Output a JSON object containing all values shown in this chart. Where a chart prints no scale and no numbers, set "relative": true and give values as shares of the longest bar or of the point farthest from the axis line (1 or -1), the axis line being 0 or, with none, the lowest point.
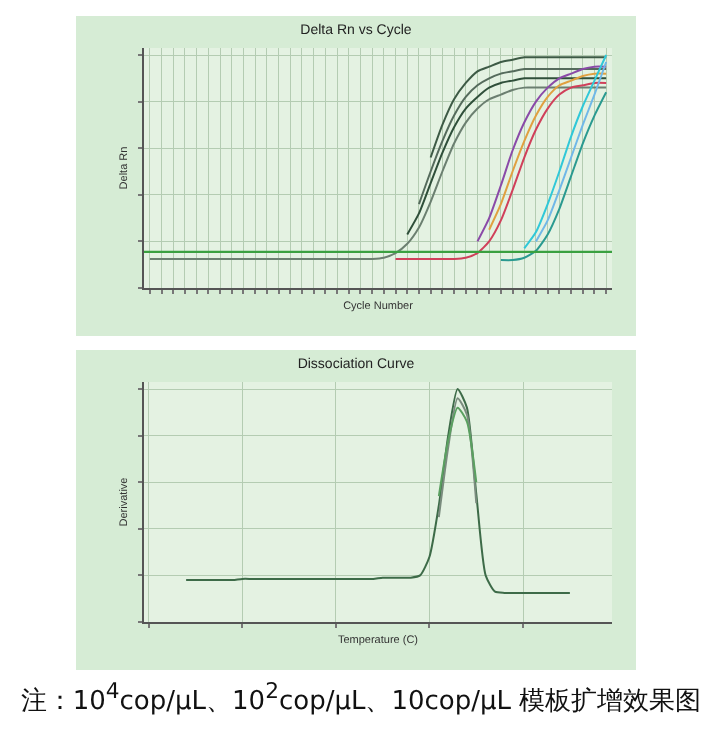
{
  "chart_data": [
    {
      "type": "line",
      "title": "Delta Rn vs Cycle",
      "xlabel": "Cycle Number",
      "ylabel": "Delta Rn",
      "relative": true,
      "grid": true,
      "categories": [
        null,
        null,
        null,
        null,
        null,
        null,
        null,
        null,
        null,
        null,
        null,
        null,
        null,
        null,
        null,
        null,
        null,
        null,
        null,
        null,
        null,
        null,
        null,
        null,
        null,
        null,
        null,
        null,
        null,
        null,
        null,
        null,
        null,
        null,
        null,
        null,
        null,
        null,
        null,
        null
      ],
      "ref_lines": [
        {
          "axis": "y",
          "value": 0.155,
          "color": "#3aa040"
        }
      ],
      "series": [
        {
          "color": "#3d5a45",
          "values": [
            null,
            null,
            null,
            null,
            null,
            null,
            null,
            null,
            null,
            null,
            null,
            null,
            null,
            null,
            null,
            null,
            null,
            null,
            null,
            null,
            null,
            null,
            null,
            null,
            0.56,
            0.7,
            0.81,
            0.88,
            0.93,
            0.95,
            0.97,
            0.98,
            0.99,
            0.99,
            0.99,
            0.99,
            0.99,
            0.99,
            0.99,
            0.99
          ]
        },
        {
          "color": "#556b5c",
          "values": [
            null,
            null,
            null,
            null,
            null,
            null,
            null,
            null,
            null,
            null,
            null,
            null,
            null,
            null,
            null,
            null,
            null,
            null,
            null,
            null,
            null,
            null,
            null,
            0.36,
            0.5,
            0.63,
            0.74,
            0.82,
            0.87,
            0.9,
            0.92,
            0.93,
            0.94,
            0.94,
            0.94,
            0.94,
            0.94,
            0.94,
            0.94,
            0.94
          ]
        },
        {
          "color": "#2f4f3a",
          "values": [
            null,
            null,
            null,
            null,
            null,
            null,
            null,
            null,
            null,
            null,
            null,
            null,
            null,
            null,
            null,
            null,
            null,
            null,
            null,
            null,
            null,
            null,
            0.23,
            0.32,
            0.45,
            0.58,
            0.69,
            0.77,
            0.82,
            0.86,
            0.88,
            0.89,
            0.9,
            0.9,
            0.9,
            0.9,
            0.9,
            0.9,
            0.9,
            0.9
          ]
        },
        {
          "color": "#6b7f70",
          "values": [
            0.125,
            0.125,
            0.125,
            0.125,
            0.125,
            0.125,
            0.125,
            0.125,
            0.125,
            0.125,
            0.125,
            0.125,
            0.125,
            0.125,
            0.125,
            0.125,
            0.125,
            0.125,
            0.125,
            0.125,
            0.13,
            0.15,
            0.19,
            0.26,
            0.37,
            0.5,
            0.62,
            0.71,
            0.77,
            0.81,
            0.83,
            0.85,
            0.86,
            0.86,
            0.86,
            0.86,
            0.86,
            0.86,
            0.86,
            0.86
          ]
        },
        {
          "color": "#8a4aa8",
          "values": [
            null,
            null,
            null,
            null,
            null,
            null,
            null,
            null,
            null,
            null,
            null,
            null,
            null,
            null,
            null,
            null,
            null,
            null,
            null,
            null,
            null,
            null,
            null,
            null,
            null,
            null,
            null,
            null,
            0.2,
            0.3,
            0.44,
            0.59,
            0.71,
            0.8,
            0.86,
            0.9,
            0.92,
            0.94,
            0.95,
            0.95
          ]
        },
        {
          "color": "#d0405a",
          "values": [
            null,
            null,
            null,
            null,
            null,
            null,
            null,
            null,
            null,
            null,
            null,
            null,
            null,
            null,
            null,
            null,
            null,
            null,
            null,
            null,
            null,
            0.125,
            0.125,
            0.125,
            0.125,
            0.125,
            0.125,
            0.13,
            0.15,
            0.2,
            0.29,
            0.42,
            0.56,
            0.68,
            0.77,
            0.83,
            0.86,
            0.87,
            0.88,
            0.88
          ]
        },
        {
          "color": "#e0a040",
          "values": [
            null,
            null,
            null,
            null,
            null,
            null,
            null,
            null,
            null,
            null,
            null,
            null,
            null,
            null,
            null,
            null,
            null,
            null,
            null,
            null,
            null,
            null,
            null,
            null,
            null,
            null,
            null,
            null,
            null,
            0.25,
            0.36,
            0.5,
            0.63,
            0.74,
            0.82,
            0.87,
            0.89,
            0.91,
            0.92,
            0.92
          ]
        },
        {
          "color": "#30c8d8",
          "values": [
            null,
            null,
            null,
            null,
            null,
            null,
            null,
            null,
            null,
            null,
            null,
            null,
            null,
            null,
            null,
            null,
            null,
            null,
            null,
            null,
            null,
            null,
            null,
            null,
            null,
            null,
            null,
            null,
            null,
            null,
            null,
            null,
            0.17,
            0.24,
            0.36,
            0.5,
            0.65,
            0.78,
            0.89,
            1.0
          ]
        },
        {
          "color": "#70b8e8",
          "values": [
            null,
            null,
            null,
            null,
            null,
            null,
            null,
            null,
            null,
            null,
            null,
            null,
            null,
            null,
            null,
            null,
            null,
            null,
            null,
            null,
            null,
            null,
            null,
            null,
            null,
            null,
            null,
            null,
            null,
            null,
            null,
            null,
            null,
            0.2,
            0.29,
            0.42,
            0.56,
            0.7,
            0.83,
            0.97
          ]
        },
        {
          "color": "#2a9a90",
          "values": [
            null,
            null,
            null,
            null,
            null,
            null,
            null,
            null,
            null,
            null,
            null,
            null,
            null,
            null,
            null,
            null,
            null,
            null,
            null,
            null,
            null,
            null,
            null,
            null,
            null,
            null,
            null,
            null,
            null,
            null,
            0.12,
            0.12,
            0.13,
            0.16,
            0.23,
            0.34,
            0.48,
            0.62,
            0.74,
            0.84
          ]
        }
      ]
    },
    {
      "type": "line",
      "title": "Dissociation Curve",
      "xlabel": "Temperature (C)",
      "ylabel": "Derivative",
      "relative": true,
      "grid": true,
      "annotations": [
        "注：10$^{4}$cop/μL、10$^{2}$cop/μL、10cop/μL 模板扩增效果图"
      ],
      "categories": [
        null,
        null,
        null,
        null,
        null,
        null,
        null,
        null,
        null,
        null,
        null,
        null,
        null,
        null,
        null,
        null,
        null,
        null,
        null,
        null,
        null,
        null,
        null,
        null,
        null,
        null,
        null,
        null,
        null,
        null,
        null,
        null,
        null,
        null,
        null,
        null,
        null,
        null,
        null,
        null,
        null,
        null,
        null,
        null,
        null,
        null,
        null,
        null,
        null,
        null
      ],
      "series": [
        {
          "color": "#3d6b48",
          "values": [
            null,
            null,
            null,
            null,
            0.18,
            0.18,
            0.18,
            0.18,
            0.18,
            0.18,
            0.185,
            0.185,
            0.185,
            0.185,
            0.185,
            0.185,
            0.185,
            0.185,
            0.185,
            0.185,
            0.185,
            0.185,
            0.185,
            0.185,
            0.185,
            0.19,
            0.19,
            0.19,
            0.19,
            0.2,
            0.28,
            0.5,
            0.8,
            1.0,
            0.92,
            0.55,
            0.2,
            0.13,
            0.125,
            0.125,
            0.125,
            0.125,
            0.125,
            0.125,
            0.125,
            0.125,
            null,
            null,
            null,
            null
          ]
        },
        {
          "color": "#7a8c7e",
          "values": [
            null,
            null,
            null,
            null,
            null,
            null,
            null,
            null,
            null,
            null,
            null,
            null,
            null,
            null,
            null,
            null,
            null,
            null,
            null,
            null,
            null,
            null,
            null,
            null,
            null,
            null,
            null,
            null,
            null,
            null,
            null,
            0.45,
            0.75,
            0.96,
            0.89,
            0.51,
            null,
            null,
            null,
            null,
            null,
            null,
            null,
            null,
            null,
            null,
            null,
            null,
            null,
            null
          ]
        },
        {
          "color": "#5aa060",
          "values": [
            null,
            null,
            null,
            null,
            null,
            null,
            null,
            null,
            null,
            null,
            null,
            null,
            null,
            null,
            null,
            null,
            null,
            null,
            null,
            null,
            null,
            null,
            null,
            null,
            null,
            null,
            null,
            null,
            null,
            null,
            null,
            0.54,
            0.78,
            0.92,
            0.86,
            0.6,
            null,
            null,
            null,
            null,
            null,
            null,
            null,
            null,
            null,
            null,
            null,
            null,
            null,
            null
          ]
        }
      ]
    }
  ]
}
